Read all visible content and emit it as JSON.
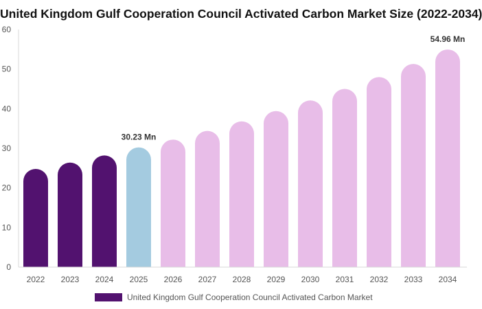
{
  "chart_data": {
    "type": "bar",
    "title": "United Kingdom Gulf Cooperation Council Activated Carbon Market Size (2022-2034)",
    "xlabel": "",
    "ylabel": "",
    "categories": [
      "2022",
      "2023",
      "2024",
      "2025",
      "2026",
      "2027",
      "2028",
      "2029",
      "2030",
      "2031",
      "2032",
      "2033",
      "2034"
    ],
    "series": [
      {
        "name": "United Kingdom Gulf Cooperation Council Activated Carbon Market",
        "values": [
          24.8,
          26.4,
          28.2,
          30.23,
          32.2,
          34.4,
          36.8,
          39.4,
          42.1,
          45.0,
          48.0,
          51.3,
          54.96
        ]
      }
    ],
    "bar_colors": [
      "#52126f",
      "#52126f",
      "#52126f",
      "#a4cbe0",
      "#e8bde8",
      "#e8bde8",
      "#e8bde8",
      "#e8bde8",
      "#e8bde8",
      "#e8bde8",
      "#e8bde8",
      "#e8bde8",
      "#e8bde8"
    ],
    "data_labels": [
      {
        "category": "2025",
        "text": "30.23 Mn"
      },
      {
        "category": "2034",
        "text": "54.96 Mn"
      }
    ],
    "yticks": [
      "0",
      "10",
      "20",
      "30",
      "40",
      "50",
      "60"
    ],
    "ylim": [
      0,
      60
    ],
    "grid": false,
    "legend_position": "bottom"
  }
}
